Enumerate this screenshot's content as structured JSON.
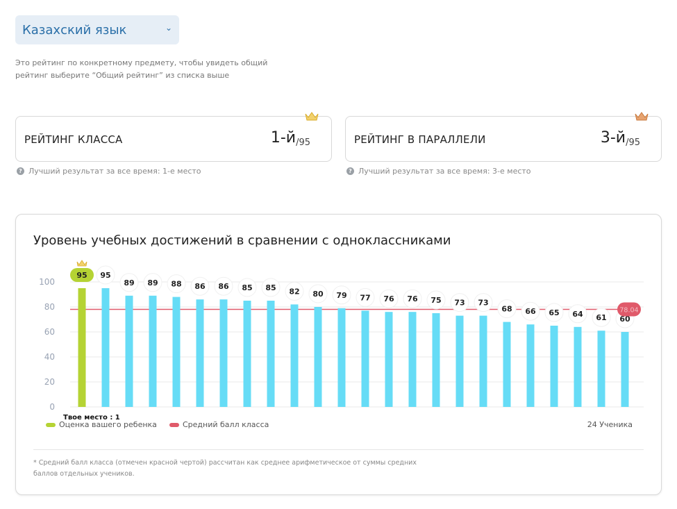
{
  "subject": {
    "label": "Казахский язык"
  },
  "hint": "Это рейтинг по конкретному предмету, чтобы увидеть общий рейтинг выберите “Общий рейтинг” из списка выше",
  "class_rating": {
    "title": "РЕЙТИНГ КЛАССА",
    "place": "1-й",
    "total": "/95",
    "best": "Лучший результат за все время: 1-е место",
    "crown_color": "#f2d16b"
  },
  "parallel_rating": {
    "title": "РЕЙТИНГ В ПАРАЛЛЕЛИ",
    "place": "3-й",
    "total": "/95",
    "best": "Лучший результат за все время: 3-е место",
    "crown_color": "#e7a36f"
  },
  "chart_data": {
    "type": "bar",
    "title": "Уровень учебных достижений в сравнении с одноклассниками",
    "xlabel": "",
    "ylabel": "",
    "values": [
      95,
      95,
      89,
      89,
      88,
      86,
      86,
      85,
      85,
      82,
      80,
      79,
      77,
      76,
      76,
      75,
      73,
      73,
      68,
      66,
      65,
      64,
      61,
      60
    ],
    "highlight_index": 0,
    "ylim": [
      0,
      100
    ],
    "yticks": [
      0,
      20,
      40,
      60,
      80,
      100
    ],
    "average": 78.04,
    "average_label": "78.04",
    "your_place_label": "Твое место : 1",
    "student_count_label": "24 Ученика",
    "legend": [
      {
        "name": "Оценка вашего ребенка",
        "color": "#b5d334"
      },
      {
        "name": "Средний балл класса",
        "color": "#e05a6a"
      }
    ],
    "colors": {
      "highlight": "#b5d334",
      "bar": "#66dcf6",
      "average": "#e05a6a",
      "grid": "#e8e8e8"
    },
    "grid": true
  },
  "note": "* Средний балл класса (отмечен красной чертой) рассчитан как среднее арифметическое от суммы средних баллов отдельных учеников."
}
